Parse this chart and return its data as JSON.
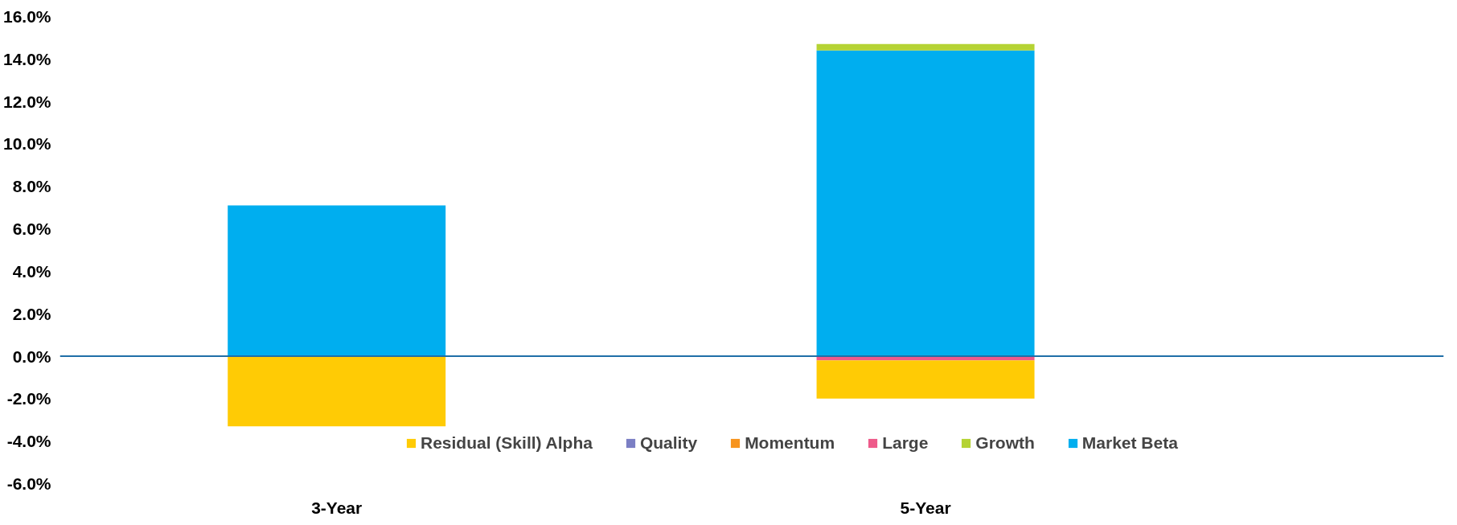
{
  "chart_data": {
    "type": "bar",
    "stacked": true,
    "categories": [
      "3-Year",
      "5-Year"
    ],
    "series": [
      {
        "name": "Market Beta",
        "color": "#00aeef",
        "values": [
          7.1,
          14.4
        ]
      },
      {
        "name": "Growth",
        "color": "#b5d334",
        "values": [
          0,
          0.3
        ]
      },
      {
        "name": "Large",
        "color": "#ee5a8a",
        "values": [
          0,
          -0.2
        ]
      },
      {
        "name": "Momentum",
        "color": "#f7941d",
        "values": [
          0,
          0
        ]
      },
      {
        "name": "Quality",
        "color": "#7b7fc4",
        "values": [
          0,
          0
        ]
      },
      {
        "name": "Residual (Skill) Alpha",
        "color": "#ffcb05",
        "values": [
          -3.3,
          -1.8
        ]
      }
    ],
    "ylim": [
      -6,
      16
    ],
    "yticks": [
      {
        "value": -6,
        "label": "-6.0%"
      },
      {
        "value": -4,
        "label": "-4.0%"
      },
      {
        "value": -2,
        "label": "-2.0%"
      },
      {
        "value": 0,
        "label": "0.0%"
      },
      {
        "value": 2,
        "label": "2.0%"
      },
      {
        "value": 4,
        "label": "4.0%"
      },
      {
        "value": 6,
        "label": "6.0%"
      },
      {
        "value": 8,
        "label": "8.0%"
      },
      {
        "value": 10,
        "label": "10.0%"
      },
      {
        "value": 12,
        "label": "12.0%"
      },
      {
        "value": 14,
        "label": "14.0%"
      },
      {
        "value": 16,
        "label": "16.0%"
      }
    ],
    "ref_lines": [
      {
        "axis": "y",
        "value": 0,
        "color": "#1f6fa8"
      }
    ],
    "grid": false,
    "legend": "bottom"
  }
}
